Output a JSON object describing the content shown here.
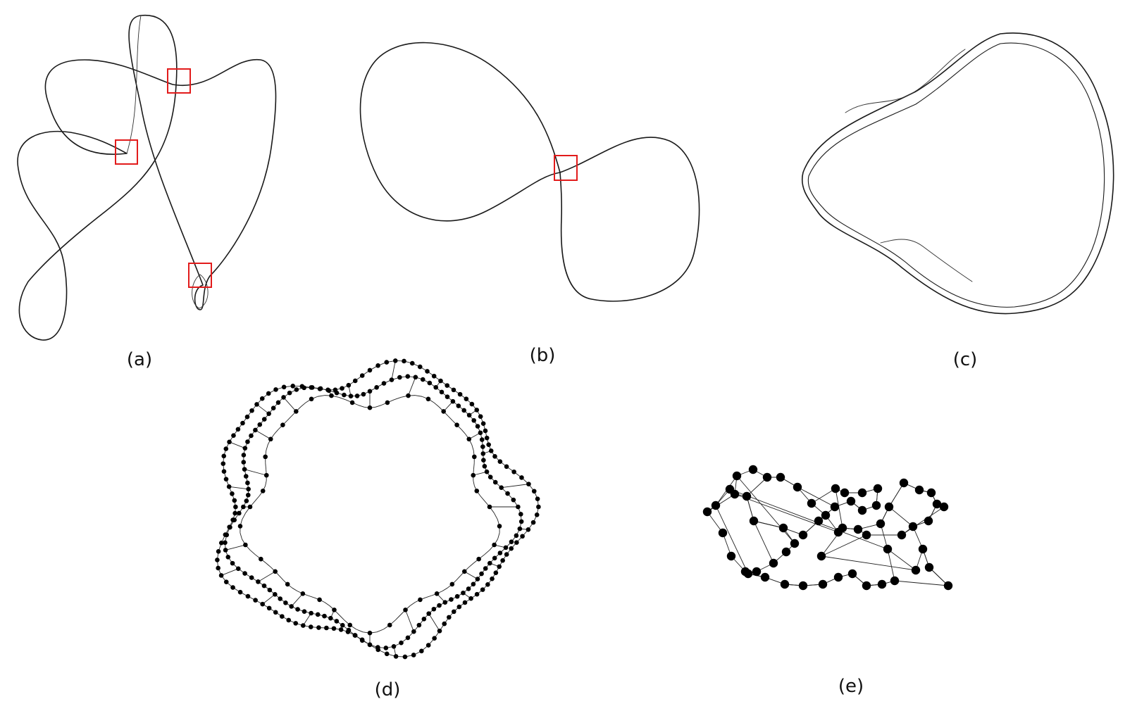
{
  "figure": {
    "panels": [
      {
        "id": "a",
        "label": "(a)",
        "kind": "curve",
        "highlighted_crossings": 3
      },
      {
        "id": "b",
        "label": "(b)",
        "kind": "curve",
        "highlighted_crossings": 1
      },
      {
        "id": "c",
        "label": "(c)",
        "kind": "dense-loop-graph"
      },
      {
        "id": "d",
        "label": "(d)",
        "kind": "node-link-ring"
      },
      {
        "id": "e",
        "label": "(e)",
        "kind": "node-link-small"
      }
    ],
    "colors": {
      "ink": "#000000",
      "highlight": "#e21b1b",
      "background": "#ffffff"
    }
  }
}
